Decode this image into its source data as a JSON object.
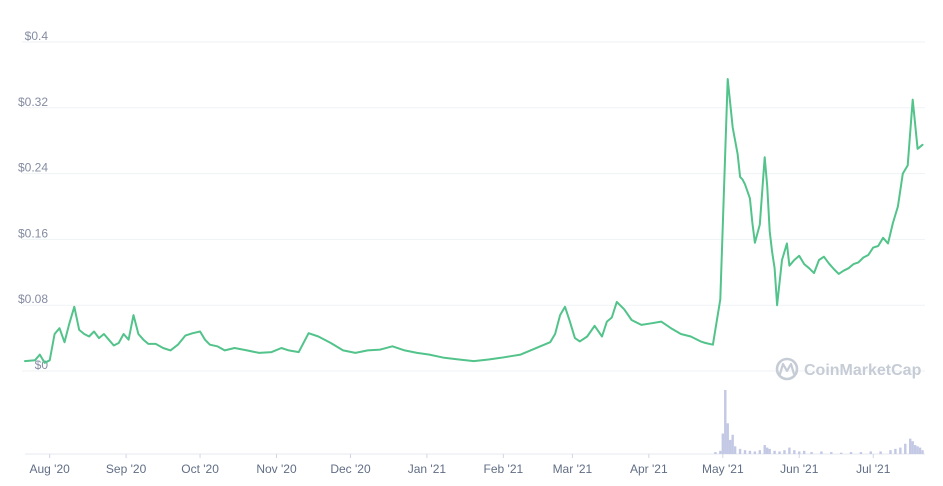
{
  "chart_data": {
    "type": "line",
    "y_ticks": [
      "$0",
      "$0.08",
      "$0.16",
      "$0.24",
      "$0.32",
      "$0.4"
    ],
    "y_tick_values": [
      0,
      0.08,
      0.16,
      0.24,
      0.32,
      0.4
    ],
    "ylim": [
      0,
      0.4
    ],
    "x_ticks": [
      "Aug '20",
      "Sep '20",
      "Oct '20",
      "Nov '20",
      "Dec '20",
      "Jan '21",
      "Feb '21",
      "Mar '21",
      "Apr '21",
      "May '21",
      "Jun '21",
      "Jul '21"
    ],
    "x_tick_dates": [
      "2020-08-01",
      "2020-09-01",
      "2020-10-01",
      "2020-11-01",
      "2020-12-01",
      "2021-01-01",
      "2021-02-01",
      "2021-03-01",
      "2021-04-01",
      "2021-05-01",
      "2021-06-01",
      "2021-07-01"
    ],
    "xlim": [
      "2020-07-22",
      "2021-07-22"
    ],
    "grid": true,
    "line_color": "#52c38a",
    "volume_color": "#c3c8e5",
    "watermark": "CoinMarketCap",
    "series": [
      {
        "x": [
          "2020-07-22",
          "2020-07-26",
          "2020-07-28",
          "2020-07-30",
          "2020-08-01",
          "2020-08-03",
          "2020-08-05",
          "2020-08-07",
          "2020-08-09",
          "2020-08-11",
          "2020-08-13",
          "2020-08-15",
          "2020-08-17",
          "2020-08-19",
          "2020-08-21",
          "2020-08-23",
          "2020-08-25",
          "2020-08-27",
          "2020-08-29",
          "2020-08-31",
          "2020-09-02",
          "2020-09-04",
          "2020-09-06",
          "2020-09-08",
          "2020-09-10",
          "2020-09-13",
          "2020-09-16",
          "2020-09-19",
          "2020-09-22",
          "2020-09-25",
          "2020-09-28",
          "2020-10-01",
          "2020-10-03",
          "2020-10-05",
          "2020-10-08",
          "2020-10-11",
          "2020-10-15",
          "2020-10-20",
          "2020-10-25",
          "2020-10-30",
          "2020-11-03",
          "2020-11-06",
          "2020-11-10",
          "2020-11-14",
          "2020-11-18",
          "2020-11-23",
          "2020-11-28",
          "2020-12-03",
          "2020-12-08",
          "2020-12-13",
          "2020-12-18",
          "2020-12-23",
          "2020-12-28",
          "2021-01-02",
          "2021-01-08",
          "2021-01-14",
          "2021-01-20",
          "2021-01-26",
          "2021-01-31",
          "2021-02-04",
          "2021-02-08",
          "2021-02-12",
          "2021-02-16",
          "2021-02-20",
          "2021-02-22",
          "2021-02-24",
          "2021-02-26",
          "2021-02-28",
          "2021-03-02",
          "2021-03-04",
          "2021-03-07",
          "2021-03-10",
          "2021-03-13",
          "2021-03-15",
          "2021-03-17",
          "2021-03-19",
          "2021-03-22",
          "2021-03-25",
          "2021-03-29",
          "2021-04-02",
          "2021-04-06",
          "2021-04-10",
          "2021-04-14",
          "2021-04-18",
          "2021-04-22",
          "2021-04-24",
          "2021-04-27",
          "2021-04-30",
          "2021-05-03",
          "2021-05-05",
          "2021-05-07",
          "2021-05-08",
          "2021-05-09",
          "2021-05-10",
          "2021-05-12",
          "2021-05-13",
          "2021-05-14",
          "2021-05-16",
          "2021-05-18",
          "2021-05-19",
          "2021-05-20",
          "2021-05-21",
          "2021-05-22",
          "2021-05-23",
          "2021-05-25",
          "2021-05-27",
          "2021-05-28",
          "2021-05-30",
          "2021-06-01",
          "2021-06-03",
          "2021-06-05",
          "2021-06-07",
          "2021-06-09",
          "2021-06-11",
          "2021-06-13",
          "2021-06-15",
          "2021-06-17",
          "2021-06-19",
          "2021-06-21",
          "2021-06-23",
          "2021-06-25",
          "2021-06-27",
          "2021-06-29",
          "2021-07-01",
          "2021-07-03",
          "2021-07-05",
          "2021-07-07",
          "2021-07-09",
          "2021-07-11",
          "2021-07-13",
          "2021-07-15",
          "2021-07-17",
          "2021-07-19",
          "2021-07-21"
        ],
        "y": [
          0.012,
          0.013,
          0.02,
          0.01,
          0.013,
          0.045,
          0.052,
          0.035,
          0.058,
          0.078,
          0.05,
          0.045,
          0.042,
          0.048,
          0.04,
          0.045,
          0.038,
          0.031,
          0.034,
          0.045,
          0.038,
          0.068,
          0.045,
          0.038,
          0.033,
          0.033,
          0.028,
          0.025,
          0.032,
          0.043,
          0.046,
          0.048,
          0.038,
          0.032,
          0.03,
          0.025,
          0.028,
          0.025,
          0.022,
          0.023,
          0.028,
          0.025,
          0.023,
          0.046,
          0.042,
          0.034,
          0.025,
          0.022,
          0.025,
          0.026,
          0.03,
          0.025,
          0.022,
          0.02,
          0.016,
          0.014,
          0.012,
          0.014,
          0.016,
          0.018,
          0.02,
          0.025,
          0.03,
          0.035,
          0.045,
          0.068,
          0.078,
          0.06,
          0.04,
          0.036,
          0.042,
          0.055,
          0.042,
          0.06,
          0.065,
          0.084,
          0.075,
          0.062,
          0.056,
          0.058,
          0.06,
          0.052,
          0.045,
          0.042,
          0.036,
          0.034,
          0.032,
          0.087,
          0.355,
          0.296,
          0.264,
          0.236,
          0.233,
          0.227,
          0.21,
          0.18,
          0.156,
          0.178,
          0.26,
          0.225,
          0.17,
          0.145,
          0.125,
          0.08,
          0.135,
          0.155,
          0.128,
          0.135,
          0.14,
          0.13,
          0.125,
          0.119,
          0.135,
          0.139,
          0.131,
          0.124,
          0.118,
          0.122,
          0.125,
          0.13,
          0.132,
          0.138,
          0.141,
          0.15,
          0.152,
          0.162,
          0.155,
          0.18,
          0.2,
          0.24,
          0.25,
          0.33,
          0.27,
          0.275
        ]
      }
    ],
    "volume": {
      "x": [
        "2021-04-28",
        "2021-04-30",
        "2021-05-01",
        "2021-05-02",
        "2021-05-03",
        "2021-05-04",
        "2021-05-05",
        "2021-05-06",
        "2021-05-08",
        "2021-05-10",
        "2021-05-12",
        "2021-05-14",
        "2021-05-16",
        "2021-05-18",
        "2021-05-19",
        "2021-05-20",
        "2021-05-22",
        "2021-05-24",
        "2021-05-26",
        "2021-05-28",
        "2021-05-30",
        "2021-06-01",
        "2021-06-03",
        "2021-06-06",
        "2021-06-10",
        "2021-06-14",
        "2021-06-18",
        "2021-06-22",
        "2021-06-26",
        "2021-06-30",
        "2021-07-04",
        "2021-07-08",
        "2021-07-10",
        "2021-07-12",
        "2021-07-14",
        "2021-07-16",
        "2021-07-17",
        "2021-07-18",
        "2021-07-19",
        "2021-07-20",
        "2021-07-21"
      ],
      "values": [
        3,
        5,
        32,
        100,
        48,
        22,
        30,
        12,
        8,
        6,
        5,
        4,
        6,
        14,
        10,
        8,
        5,
        4,
        6,
        10,
        6,
        4,
        5,
        3,
        4,
        3,
        2,
        3,
        3,
        4,
        4,
        6,
        8,
        10,
        16,
        24,
        20,
        14,
        12,
        10,
        6
      ]
    }
  }
}
